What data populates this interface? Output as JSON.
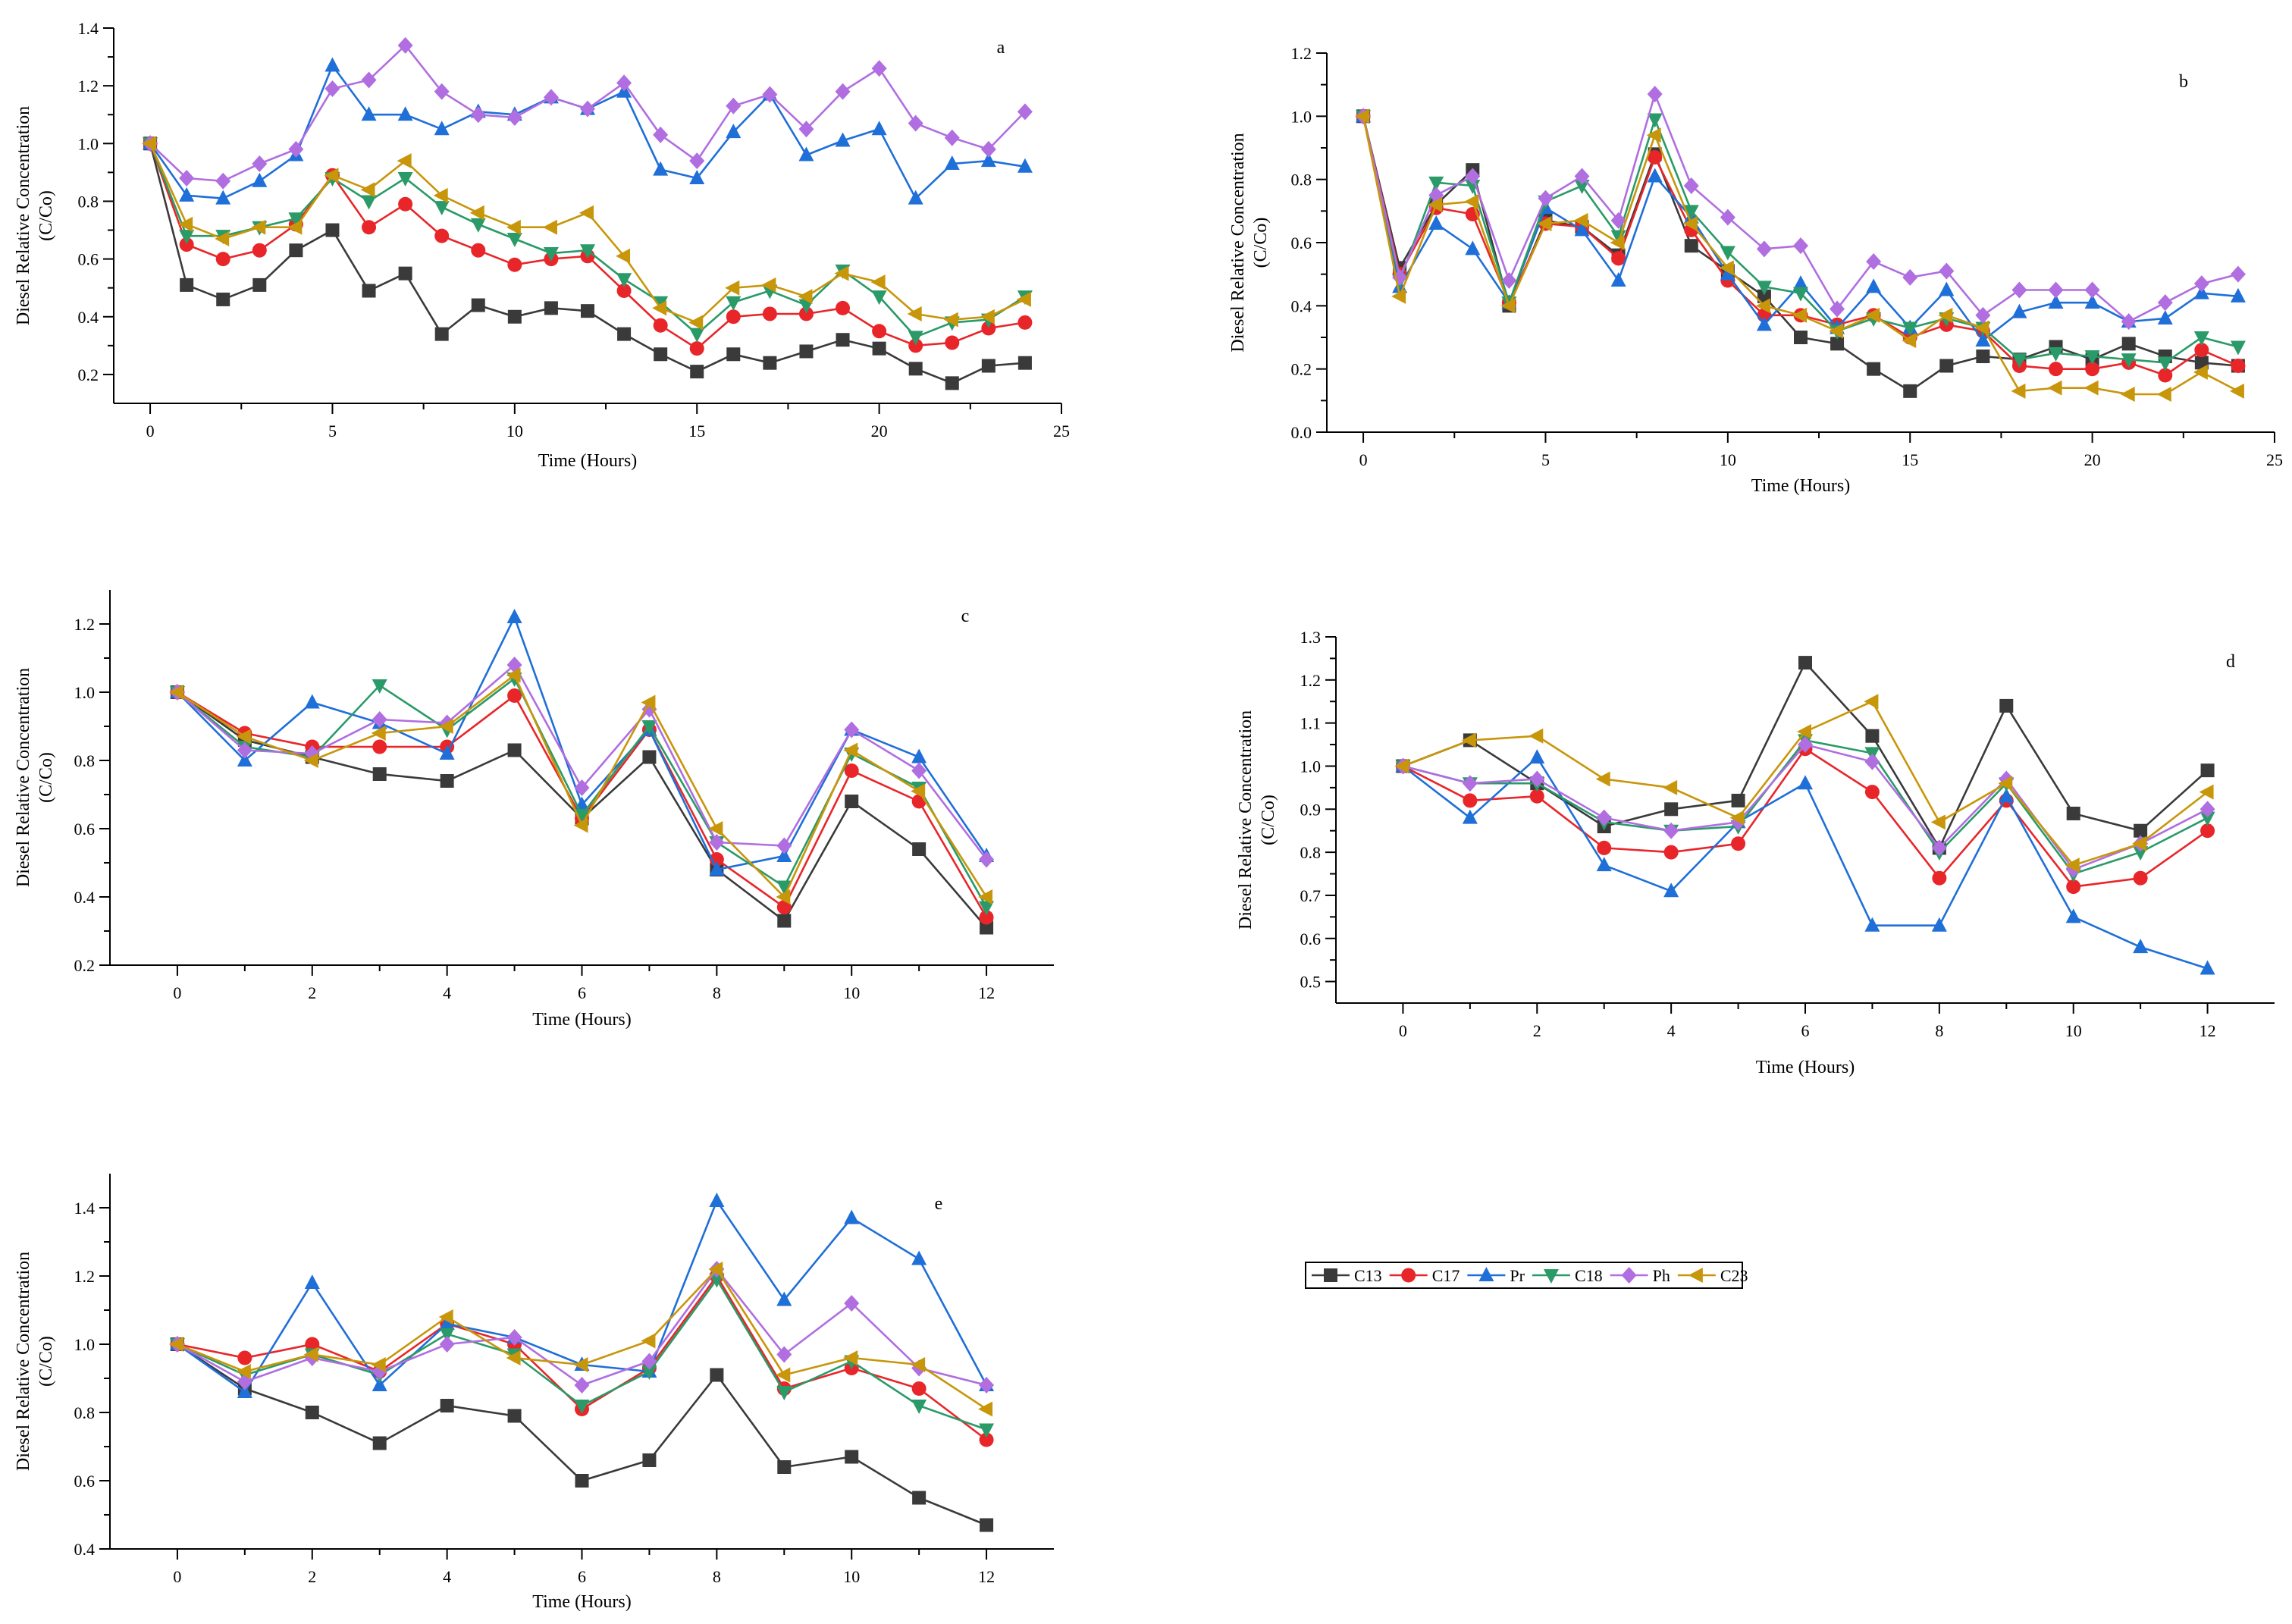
{
  "legend": {
    "entries": [
      {
        "name": "C13",
        "color": "#3a3a3a",
        "marker": "square"
      },
      {
        "name": "C17",
        "color": "#e8262a",
        "marker": "circle"
      },
      {
        "name": "Pr",
        "color": "#1f6fd8",
        "marker": "triangle-up"
      },
      {
        "name": "C18",
        "color": "#2a9a68",
        "marker": "triangle-down"
      },
      {
        "name": "Ph",
        "color": "#b06ee0",
        "marker": "diamond"
      },
      {
        "name": "C23",
        "color": "#c8960a",
        "marker": "triangle-left"
      }
    ]
  },
  "chart_data": [
    {
      "type": "line",
      "panel_label": "a",
      "xlabel": "Time (Hours)",
      "ylabel": "Diesel Relative Concentration",
      "ylabel2": "(C/Co)",
      "xlim": [
        -1,
        25
      ],
      "ylim": [
        0.1,
        1.4
      ],
      "xticks": [
        0,
        5,
        10,
        15,
        20,
        25
      ],
      "xtick_labels": [
        "0",
        "5",
        "10",
        "15",
        "20",
        "25"
      ],
      "yticks": [
        0.2,
        0.4,
        0.6,
        0.8,
        1.0,
        1.2,
        1.4
      ],
      "ytick_labels": [
        "0.2",
        "0.4",
        "0.6",
        "0.8",
        "1.0",
        "1.2",
        "1.4"
      ],
      "x": [
        0,
        1,
        2,
        3,
        4,
        5,
        6,
        7,
        8,
        9,
        10,
        11,
        12,
        13,
        14,
        15,
        16,
        17,
        18,
        19,
        20,
        21,
        22,
        23,
        24
      ],
      "series": [
        {
          "name": "C13",
          "values": [
            1.0,
            0.51,
            0.46,
            0.51,
            0.63,
            0.7,
            0.49,
            0.55,
            0.34,
            0.44,
            0.4,
            0.43,
            0.42,
            0.34,
            0.27,
            0.21,
            0.27,
            0.24,
            0.28,
            0.32,
            0.29,
            0.22,
            0.17,
            0.23,
            0.24
          ]
        },
        {
          "name": "C17",
          "values": [
            1.0,
            0.65,
            0.6,
            0.63,
            0.72,
            0.89,
            0.71,
            0.79,
            0.68,
            0.63,
            0.58,
            0.6,
            0.61,
            0.49,
            0.37,
            0.29,
            0.4,
            0.41,
            0.41,
            0.43,
            0.35,
            0.3,
            0.31,
            0.36,
            0.38
          ]
        },
        {
          "name": "Pr",
          "values": [
            1.0,
            0.82,
            0.81,
            0.87,
            0.96,
            1.27,
            1.1,
            1.1,
            1.05,
            1.11,
            1.1,
            1.16,
            1.12,
            1.18,
            0.91,
            0.88,
            1.04,
            1.17,
            0.96,
            1.01,
            1.05,
            0.81,
            0.93,
            0.94,
            0.92
          ]
        },
        {
          "name": "C18",
          "values": [
            1.0,
            0.68,
            0.68,
            0.71,
            0.74,
            0.88,
            0.8,
            0.88,
            0.78,
            0.72,
            0.67,
            0.62,
            0.63,
            0.53,
            0.45,
            0.34,
            0.45,
            0.49,
            0.44,
            0.56,
            0.47,
            0.33,
            0.38,
            0.39,
            0.47
          ]
        },
        {
          "name": "Ph",
          "values": [
            1.0,
            0.88,
            0.87,
            0.93,
            0.98,
            1.19,
            1.22,
            1.34,
            1.18,
            1.1,
            1.09,
            1.16,
            1.12,
            1.21,
            1.03,
            0.94,
            1.13,
            1.17,
            1.05,
            1.18,
            1.26,
            1.07,
            1.02,
            0.98,
            1.11
          ]
        },
        {
          "name": "C23",
          "values": [
            1.0,
            0.72,
            0.67,
            0.71,
            0.71,
            0.89,
            0.84,
            0.94,
            0.82,
            0.76,
            0.71,
            0.71,
            0.76,
            0.61,
            0.43,
            0.38,
            0.5,
            0.51,
            0.47,
            0.55,
            0.52,
            0.41,
            0.39,
            0.4,
            0.46
          ]
        }
      ]
    },
    {
      "type": "line",
      "panel_label": "b",
      "xlabel": "Time (Hours)",
      "ylabel": "Diesel Relative Concentration",
      "ylabel2": "(C/Co)",
      "xlim": [
        -1,
        25
      ],
      "ylim": [
        0.0,
        1.2
      ],
      "xticks": [
        0,
        5,
        10,
        15,
        20,
        25
      ],
      "xtick_labels": [
        "0",
        "5",
        "10",
        "15",
        "20",
        "25"
      ],
      "yticks": [
        0.0,
        0.2,
        0.4,
        0.6,
        0.8,
        1.0,
        1.2
      ],
      "ytick_labels": [
        "0.0",
        "0.2",
        "0.4",
        "0.6",
        "0.8",
        "1.0",
        "1.2"
      ],
      "x": [
        0,
        1,
        2,
        3,
        4,
        5,
        6,
        7,
        8,
        9,
        10,
        11,
        12,
        13,
        14,
        15,
        16,
        17,
        18,
        19,
        20,
        21,
        22,
        23,
        24
      ],
      "series": [
        {
          "name": "C13",
          "values": [
            1.0,
            0.52,
            0.72,
            0.83,
            0.4,
            0.67,
            0.65,
            0.56,
            0.88,
            0.59,
            0.51,
            0.43,
            0.3,
            0.28,
            0.2,
            0.13,
            0.21,
            0.24,
            0.23,
            0.27,
            0.23,
            0.28,
            0.24,
            0.22,
            0.21
          ]
        },
        {
          "name": "C17",
          "values": [
            1.0,
            0.5,
            0.71,
            0.69,
            0.41,
            0.66,
            0.65,
            0.55,
            0.87,
            0.64,
            0.48,
            0.37,
            0.37,
            0.34,
            0.37,
            0.3,
            0.34,
            0.32,
            0.21,
            0.2,
            0.2,
            0.22,
            0.18,
            0.26,
            0.21
          ]
        },
        {
          "name": "Pr",
          "values": [
            1.0,
            0.46,
            0.66,
            0.58,
            0.41,
            0.71,
            0.64,
            0.48,
            0.81,
            0.68,
            0.5,
            0.34,
            0.47,
            0.33,
            0.46,
            0.33,
            0.45,
            0.29,
            0.38,
            0.41,
            0.41,
            0.35,
            0.36,
            0.44,
            0.43
          ]
        },
        {
          "name": "C18",
          "values": [
            1.0,
            0.48,
            0.79,
            0.78,
            0.41,
            0.73,
            0.78,
            0.62,
            0.99,
            0.7,
            0.57,
            0.46,
            0.44,
            0.32,
            0.36,
            0.33,
            0.36,
            0.33,
            0.23,
            0.25,
            0.24,
            0.23,
            0.22,
            0.3,
            0.27
          ]
        },
        {
          "name": "Ph",
          "values": [
            1.0,
            0.49,
            0.75,
            0.81,
            0.48,
            0.74,
            0.81,
            0.67,
            1.07,
            0.78,
            0.68,
            0.58,
            0.59,
            0.39,
            0.54,
            0.49,
            0.51,
            0.37,
            0.45,
            0.45,
            0.45,
            0.35,
            0.41,
            0.47,
            0.5
          ]
        },
        {
          "name": "C23",
          "values": [
            1.0,
            0.43,
            0.72,
            0.73,
            0.4,
            0.66,
            0.67,
            0.6,
            0.94,
            0.66,
            0.52,
            0.4,
            0.37,
            0.32,
            0.37,
            0.29,
            0.37,
            0.33,
            0.13,
            0.14,
            0.14,
            0.12,
            0.12,
            0.19,
            0.13
          ]
        }
      ]
    },
    {
      "type": "line",
      "panel_label": "c",
      "xlabel": "Time (Hours)",
      "ylabel": "Diesel Relative Concentration",
      "ylabel2": "(C/Co)",
      "xlim": [
        -1,
        13
      ],
      "ylim": [
        0.2,
        1.3
      ],
      "xticks": [
        0,
        2,
        4,
        6,
        8,
        10,
        12
      ],
      "xtick_labels": [
        "0",
        "2",
        "4",
        "6",
        "8",
        "10",
        "12"
      ],
      "yticks": [
        0.2,
        0.4,
        0.6,
        0.8,
        1.0,
        1.2
      ],
      "ytick_labels": [
        "0.2",
        "0.4",
        "0.6",
        "0.8",
        "1.0",
        "1.2"
      ],
      "x": [
        0,
        1,
        2,
        3,
        4,
        5,
        6,
        7,
        8,
        9,
        10,
        11,
        12
      ],
      "series": [
        {
          "name": "C13",
          "values": [
            1.0,
            0.86,
            0.81,
            0.76,
            0.74,
            0.83,
            0.63,
            0.81,
            0.48,
            0.33,
            0.68,
            0.54,
            0.31
          ]
        },
        {
          "name": "C17",
          "values": [
            1.0,
            0.88,
            0.84,
            0.84,
            0.84,
            0.99,
            0.63,
            0.89,
            0.51,
            0.37,
            0.77,
            0.68,
            0.34
          ]
        },
        {
          "name": "Pr",
          "values": [
            1.0,
            0.8,
            0.97,
            0.91,
            0.82,
            1.22,
            0.67,
            0.89,
            0.48,
            0.52,
            0.89,
            0.81,
            0.52
          ]
        },
        {
          "name": "C18",
          "values": [
            1.0,
            0.84,
            0.81,
            1.02,
            0.89,
            1.04,
            0.64,
            0.9,
            0.56,
            0.43,
            0.82,
            0.72,
            0.37
          ]
        },
        {
          "name": "Ph",
          "values": [
            1.0,
            0.83,
            0.82,
            0.92,
            0.91,
            1.08,
            0.72,
            0.95,
            0.56,
            0.55,
            0.89,
            0.77,
            0.51
          ]
        },
        {
          "name": "C23",
          "values": [
            1.0,
            0.87,
            0.8,
            0.88,
            0.9,
            1.05,
            0.61,
            0.97,
            0.6,
            0.4,
            0.83,
            0.71,
            0.4
          ]
        }
      ]
    },
    {
      "type": "line",
      "panel_label": "d",
      "xlabel": "Time (Hours)",
      "ylabel": "Diesel Relative Concentration",
      "ylabel2": "(C/Co)",
      "xlim": [
        -1,
        13
      ],
      "ylim": [
        0.45,
        1.3
      ],
      "xticks": [
        0,
        2,
        4,
        6,
        8,
        10,
        12
      ],
      "xtick_labels": [
        "0",
        "2",
        "4",
        "6",
        "8",
        "10",
        "12"
      ],
      "yticks": [
        0.5,
        0.6,
        0.7,
        0.8,
        0.9,
        1.0,
        1.1,
        1.2,
        1.3
      ],
      "ytick_labels": [
        "0.5",
        "0.6",
        "0.7",
        "0.8",
        "0.9",
        "1.0",
        "1.1",
        "1.2",
        "1.3"
      ],
      "x": [
        0,
        1,
        2,
        3,
        4,
        5,
        6,
        7,
        8,
        9,
        10,
        11,
        12
      ],
      "series": [
        {
          "name": "C13",
          "values": [
            1.0,
            1.06,
            0.96,
            0.86,
            0.9,
            0.92,
            1.24,
            1.07,
            0.81,
            1.14,
            0.89,
            0.85,
            0.99
          ]
        },
        {
          "name": "C17",
          "values": [
            1.0,
            0.92,
            0.93,
            0.81,
            0.8,
            0.82,
            1.04,
            0.94,
            0.74,
            0.92,
            0.72,
            0.74,
            0.85
          ]
        },
        {
          "name": "Pr",
          "values": [
            1.0,
            0.88,
            1.02,
            0.77,
            0.71,
            0.87,
            0.96,
            0.63,
            0.63,
            0.93,
            0.65,
            0.58,
            0.53
          ]
        },
        {
          "name": "C18",
          "values": [
            1.0,
            0.96,
            0.96,
            0.87,
            0.85,
            0.86,
            1.06,
            1.03,
            0.8,
            0.96,
            0.75,
            0.8,
            0.88
          ]
        },
        {
          "name": "Ph",
          "values": [
            1.0,
            0.96,
            0.97,
            0.88,
            0.85,
            0.87,
            1.05,
            1.01,
            0.81,
            0.97,
            0.76,
            0.82,
            0.9
          ]
        },
        {
          "name": "C23",
          "values": [
            1.0,
            1.06,
            1.07,
            0.97,
            0.95,
            0.88,
            1.08,
            1.15,
            0.87,
            0.96,
            0.77,
            0.82,
            0.94
          ]
        }
      ]
    },
    {
      "type": "line",
      "panel_label": "e",
      "xlabel": "Time (Hours)",
      "ylabel": "Diesel Relative Concentration",
      "ylabel2": "(C/Co)",
      "xlim": [
        -1,
        13
      ],
      "ylim": [
        0.4,
        1.5
      ],
      "xticks": [
        0,
        2,
        4,
        6,
        8,
        10,
        12
      ],
      "xtick_labels": [
        "0",
        "2",
        "4",
        "6",
        "8",
        "10",
        "12"
      ],
      "yticks": [
        0.4,
        0.6,
        0.8,
        1.0,
        1.2,
        1.4
      ],
      "ytick_labels": [
        "0.4",
        "0.6",
        "0.8",
        "1.0",
        "1.2",
        "1.4"
      ],
      "x": [
        0,
        1,
        2,
        3,
        4,
        5,
        6,
        7,
        8,
        9,
        10,
        11,
        12
      ],
      "series": [
        {
          "name": "C13",
          "values": [
            1.0,
            0.87,
            0.8,
            0.71,
            0.82,
            0.79,
            0.6,
            0.66,
            0.91,
            0.64,
            0.67,
            0.55,
            0.47
          ]
        },
        {
          "name": "C17",
          "values": [
            1.0,
            0.96,
            1.0,
            0.92,
            1.06,
            1.0,
            0.81,
            0.93,
            1.2,
            0.87,
            0.93,
            0.87,
            0.72
          ]
        },
        {
          "name": "Pr",
          "values": [
            1.0,
            0.86,
            1.18,
            0.88,
            1.06,
            1.02,
            0.94,
            0.92,
            1.42,
            1.13,
            1.37,
            1.25,
            0.88
          ]
        },
        {
          "name": "C18",
          "values": [
            1.0,
            0.91,
            0.97,
            0.91,
            1.03,
            0.97,
            0.82,
            0.92,
            1.19,
            0.86,
            0.95,
            0.82,
            0.75
          ]
        },
        {
          "name": "Ph",
          "values": [
            1.0,
            0.89,
            0.96,
            0.92,
            1.0,
            1.02,
            0.88,
            0.95,
            1.22,
            0.97,
            1.12,
            0.93,
            0.88
          ]
        },
        {
          "name": "C23",
          "values": [
            1.0,
            0.92,
            0.97,
            0.94,
            1.08,
            0.96,
            0.94,
            1.01,
            1.22,
            0.91,
            0.96,
            0.94,
            0.81
          ]
        }
      ]
    }
  ]
}
